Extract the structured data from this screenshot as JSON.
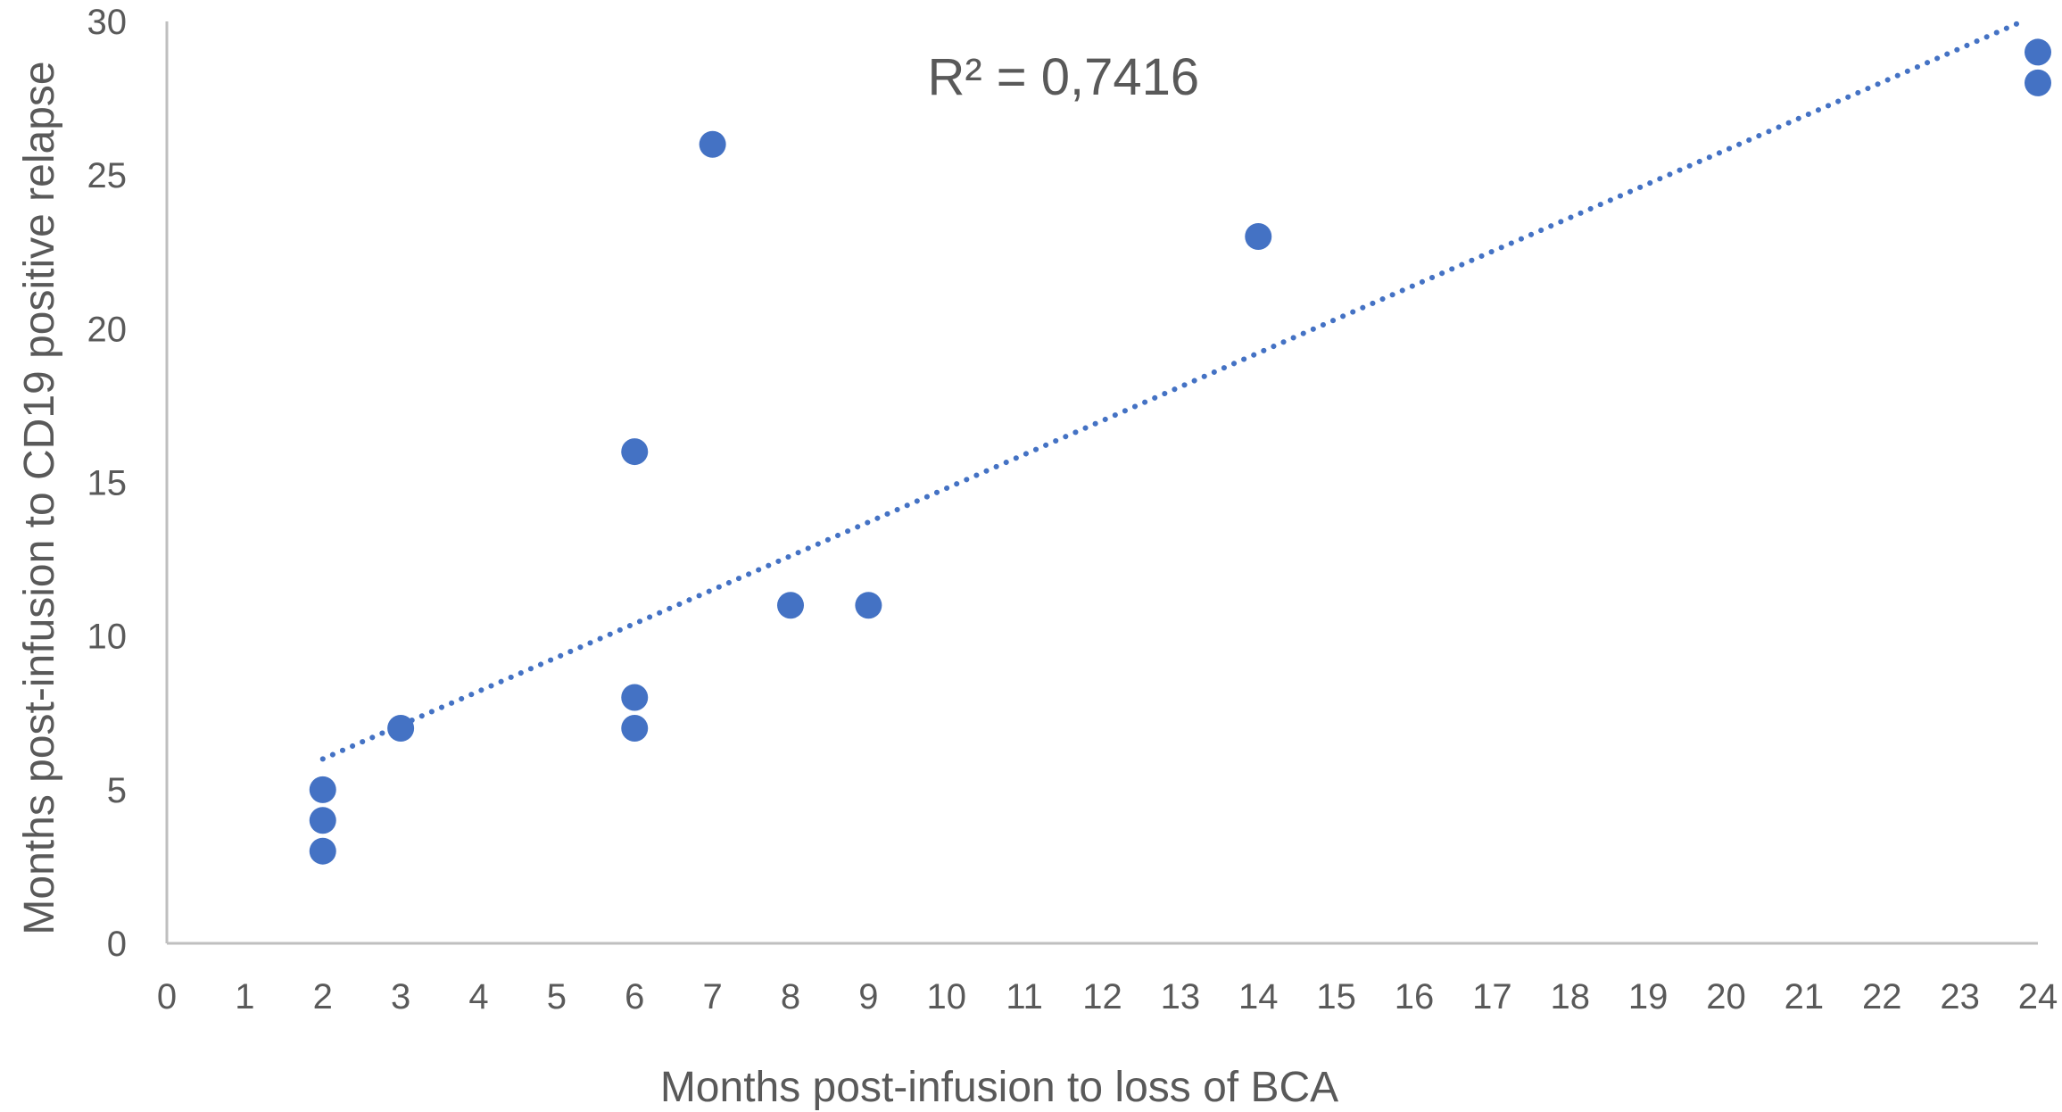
{
  "chart_data": {
    "type": "scatter",
    "title": "",
    "xlabel": "Months post-infusion to loss of BCA",
    "ylabel": "Months post-infusion to CD19 positive relapse",
    "xlim": [
      0,
      24
    ],
    "ylim": [
      0,
      30
    ],
    "xticks": [
      "0",
      "1",
      "2",
      "3",
      "4",
      "5",
      "6",
      "7",
      "8",
      "9",
      "10",
      "11",
      "12",
      "13",
      "14",
      "15",
      "16",
      "17",
      "18",
      "19",
      "20",
      "21",
      "22",
      "23",
      "24"
    ],
    "yticks": [
      "0",
      "5",
      "10",
      "15",
      "20",
      "25",
      "30"
    ],
    "grid": false,
    "legend": "none",
    "series": [
      {
        "points": [
          {
            "x": 2,
            "y": 5
          },
          {
            "x": 2,
            "y": 4
          },
          {
            "x": 2,
            "y": 3
          },
          {
            "x": 3,
            "y": 7
          },
          {
            "x": 6,
            "y": 16
          },
          {
            "x": 6,
            "y": 8
          },
          {
            "x": 6,
            "y": 7
          },
          {
            "x": 7,
            "y": 26
          },
          {
            "x": 8,
            "y": 11
          },
          {
            "x": 9,
            "y": 11
          },
          {
            "x": 14,
            "y": 23
          },
          {
            "x": 24,
            "y": 29
          },
          {
            "x": 24,
            "y": 28
          }
        ],
        "color": "#4472C4"
      }
    ],
    "trendline": {
      "type": "linear",
      "style": "dotted",
      "color": "#4472C4",
      "from": {
        "x": 2,
        "y": 6
      },
      "to": {
        "x": 23.8,
        "y": 30
      }
    },
    "annotations": [
      {
        "text": "R² = 0,7416",
        "x": 11.5,
        "y": 28.2
      }
    ]
  }
}
